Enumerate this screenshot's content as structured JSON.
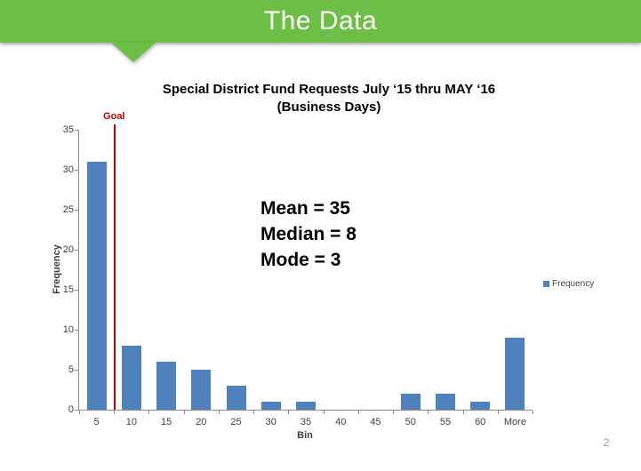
{
  "header": {
    "title": "The Data",
    "banner_color": "#6CBE45",
    "text_color": "#FFFFFF"
  },
  "annotation": {
    "lines": [
      "Mean = 35",
      "Median = 8",
      "Mode = 3"
    ]
  },
  "footer": {
    "page_number": "2"
  },
  "chart_data": {
    "type": "bar",
    "title": "Special District Fund Requests July ‘15 thru MAY ‘16",
    "subtitle": "(Business Days)",
    "categories": [
      "5",
      "10",
      "15",
      "20",
      "25",
      "30",
      "35",
      "40",
      "45",
      "50",
      "55",
      "60",
      "More"
    ],
    "series": [
      {
        "name": "Frequency",
        "values": [
          31,
          8,
          6,
          5,
          3,
          1,
          1,
          0,
          0,
          2,
          2,
          1,
          9
        ]
      }
    ],
    "xlabel": "Bin",
    "ylabel": "Frequency",
    "ylim": [
      0,
      35
    ],
    "ytick_step": 5,
    "grid": false,
    "legend_position": "right",
    "bar_color": "#4F81BD",
    "axis_color": "#8C8C8C",
    "tick_label_color": "#3F3F3F",
    "goal_line": {
      "label": "Goal",
      "color": "#C00000",
      "axis_fraction": 0.077
    }
  }
}
